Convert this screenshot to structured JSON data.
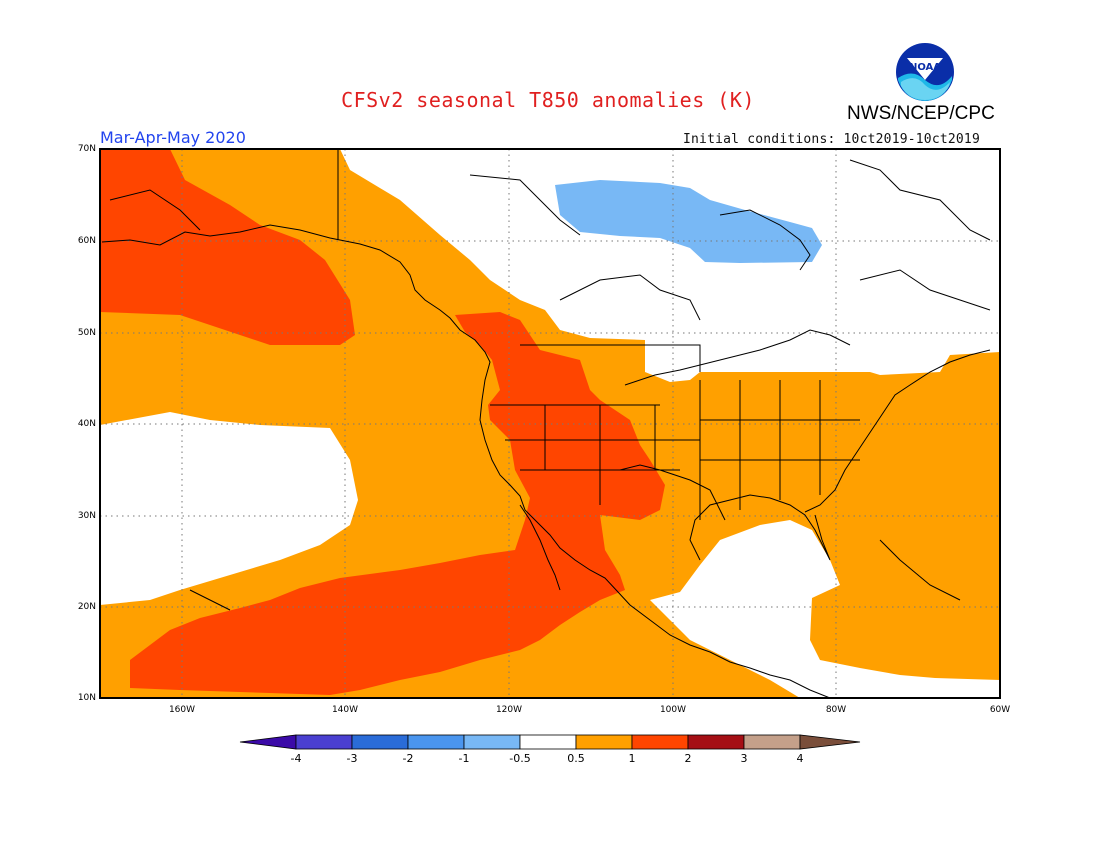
{
  "title": "CFSv2 seasonal T850 anomalies (K)",
  "agency": "NWS/NCEP/CPC",
  "logo_text": "NOAA",
  "period": "Mar-Apr-May 2020",
  "initial_conditions": "Initial conditions: 10ct2019-10ct2019",
  "lat_labels": [
    "70N",
    "60N",
    "50N",
    "40N",
    "30N",
    "20N",
    "10N"
  ],
  "lon_labels": [
    "160W",
    "140W",
    "120W",
    "100W",
    "80W",
    "60W"
  ],
  "colorbar": {
    "labels": [
      "-4",
      "-3",
      "-2",
      "-1",
      "-0.5",
      "0.5",
      "1",
      "2",
      "3",
      "4"
    ],
    "colors": [
      "#3b0aa8",
      "#4a3fd0",
      "#2a6cd8",
      "#4a95ee",
      "#78b8f5",
      "#ffffff",
      "#ffa000",
      "#ff4500",
      "#a50f15",
      "#c4a08a",
      "#7a4e3a"
    ]
  },
  "anomaly_colors": {
    "weak_warm": "#ffa000",
    "moderate_warm": "#ff4500",
    "weak_cold": "#78b8f5",
    "neutral": "#ffffff"
  }
}
